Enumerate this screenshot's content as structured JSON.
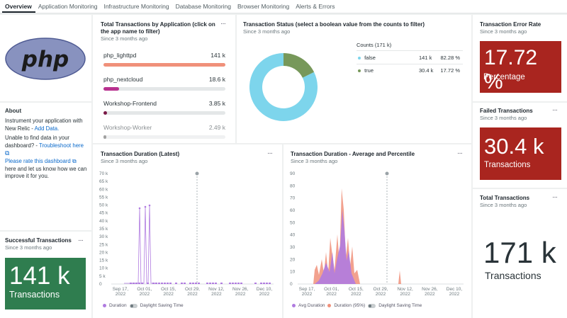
{
  "tabs": [
    "Overview",
    "Application Monitoring",
    "Infrastructure Monitoring",
    "Database Monitoring",
    "Browser Monitoring",
    "Alerts & Errors"
  ],
  "logo": {
    "text": "php"
  },
  "about": {
    "title": "About",
    "line1": "Instrument your application with New Relic - ",
    "add_data": "Add Data.",
    "line2": "Unable to find data in your dashboard? - ",
    "troubleshoot": "Troubleshoot here",
    "rate_link": "Please rate this dashboard",
    "line3": "here and let us know how we can improve it for you."
  },
  "successful": {
    "title": "Successful Transactions",
    "subtitle": "Since 3 months ago",
    "value": "141 k",
    "label": "Transactions",
    "color": "#2f7d4f"
  },
  "total_by_app": {
    "title": "Total Transactions by Application (click on the app name to filter)",
    "subtitle": "Since 3 months ago",
    "rows": [
      {
        "name": "php_lighttpd",
        "value": "141 k",
        "fraction": 1.0,
        "color": "#f0907a"
      },
      {
        "name": "php_nextcloud",
        "value": "18.6 k",
        "fraction": 0.13,
        "color": "#b8318f"
      },
      {
        "name": "Workshop-Frontend",
        "value": "3.85 k",
        "fraction": 0.027,
        "color": "#7a1a47"
      },
      {
        "name": "Workshop-Worker",
        "value": "2.49 k",
        "fraction": 0.018,
        "color": "#555"
      }
    ]
  },
  "status": {
    "title": "Transaction Status (select a boolean value from the counts to filter)",
    "subtitle": "Since 3 months ago",
    "counts_header": "Counts (171 k)",
    "rows": [
      {
        "name": "false",
        "value": "141 k",
        "pct": "82.28 %",
        "fraction": 0.8228,
        "color": "#7dd5ec"
      },
      {
        "name": "true",
        "value": "30.4 k",
        "pct": "17.72 %",
        "fraction": 0.1772,
        "color": "#77985a"
      }
    ]
  },
  "error_rate": {
    "title": "Transaction Error Rate",
    "subtitle": "Since 3 months ago",
    "value": "17.72 %",
    "label": "Percentage",
    "color": "#a9251f"
  },
  "failed": {
    "title": "Failed Transactions",
    "subtitle": "Since 3 months ago",
    "value": "30.4 k",
    "label": "Transactions",
    "color": "#a9251f"
  },
  "total": {
    "title": "Total Transactions",
    "subtitle": "Since 3 months ago",
    "value": "171 k",
    "label": "Transactions"
  },
  "duration_latest": {
    "title": "Transaction Duration (Latest)",
    "subtitle": "Since 3 months ago",
    "legend": [
      "Duration",
      "Daylight Saving Time"
    ],
    "yticks": [
      "70 k",
      "65 k",
      "60 k",
      "55 k",
      "50 k",
      "45 k",
      "40 k",
      "35 k",
      "30 k",
      "25 k",
      "20 k",
      "15 k",
      "10 k",
      "5 k",
      "0"
    ],
    "xticks": [
      "Sep 17,\n2022",
      "Oct 01,\n2022",
      "Oct 15,\n2022",
      "Oct 29,\n2022",
      "Nov 12,\n2022",
      "Nov 26,\n2022",
      "Dec 10,\n2022"
    ],
    "color": "#b07be0"
  },
  "duration_avg": {
    "title": "Transaction Duration - Average and Percentile",
    "subtitle": "Since 3 months ago",
    "legend": [
      "Avg Duration",
      "Duration (95%)",
      "Daylight Saving Time"
    ],
    "yticks": [
      "90",
      "80",
      "70",
      "60",
      "50",
      "40",
      "30",
      "20",
      "10",
      "0"
    ],
    "xticks": [
      "Sep 17,\n2022",
      "Oct 01,\n2022",
      "Oct 15,\n2022",
      "Oct 29,\n2022",
      "Nov 12,\n2022",
      "Nov 26,\n2022",
      "Dec 10,\n2022"
    ],
    "colors": {
      "avg": "#b07be0",
      "p95": "#f0907a"
    }
  }
}
